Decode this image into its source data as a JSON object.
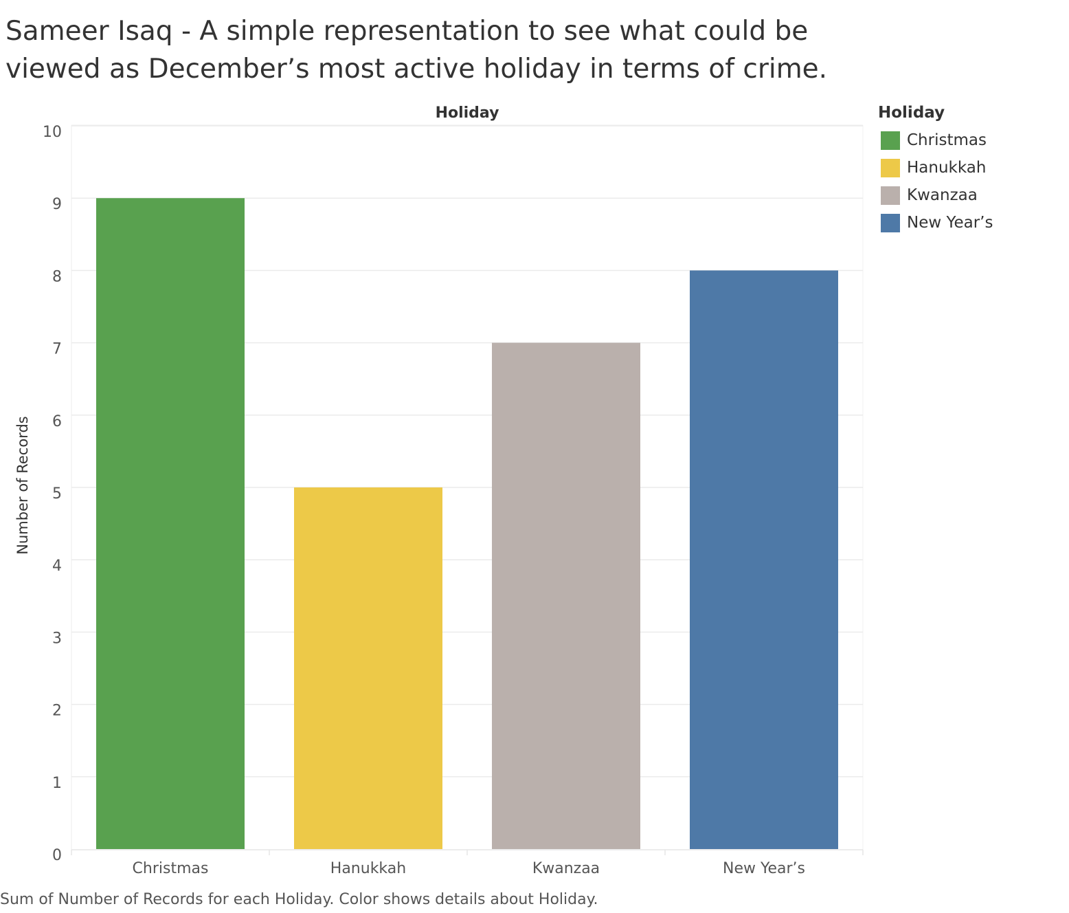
{
  "title": "Sameer Isaq - A simple representation to see what could be viewed as December’s most active holiday in terms of crime.",
  "footnote": "Sum of Number of Records for each Holiday.  Color shows details about Holiday.",
  "legend": {
    "title": "Holiday",
    "items": [
      {
        "label": "Christmas",
        "color": "#59a14f"
      },
      {
        "label": "Hanukkah",
        "color": "#edc948"
      },
      {
        "label": "Kwanzaa",
        "color": "#bab0ac"
      },
      {
        "label": "New Year’s",
        "color": "#4e79a7"
      }
    ]
  },
  "chart_data": {
    "type": "bar",
    "column_header": "Holiday",
    "categories": [
      "Christmas",
      "Hanukkah",
      "Kwanzaa",
      "New Year’s"
    ],
    "values": [
      9,
      5,
      7,
      8
    ],
    "colors": [
      "#59a14f",
      "#edc948",
      "#bab0ac",
      "#4e79a7"
    ],
    "ylabel": "Number of Records",
    "ylim": [
      0,
      10
    ],
    "yticks": [
      0,
      1,
      2,
      3,
      4,
      5,
      6,
      7,
      8,
      9,
      10
    ],
    "grid": true,
    "legend_position": "right"
  }
}
